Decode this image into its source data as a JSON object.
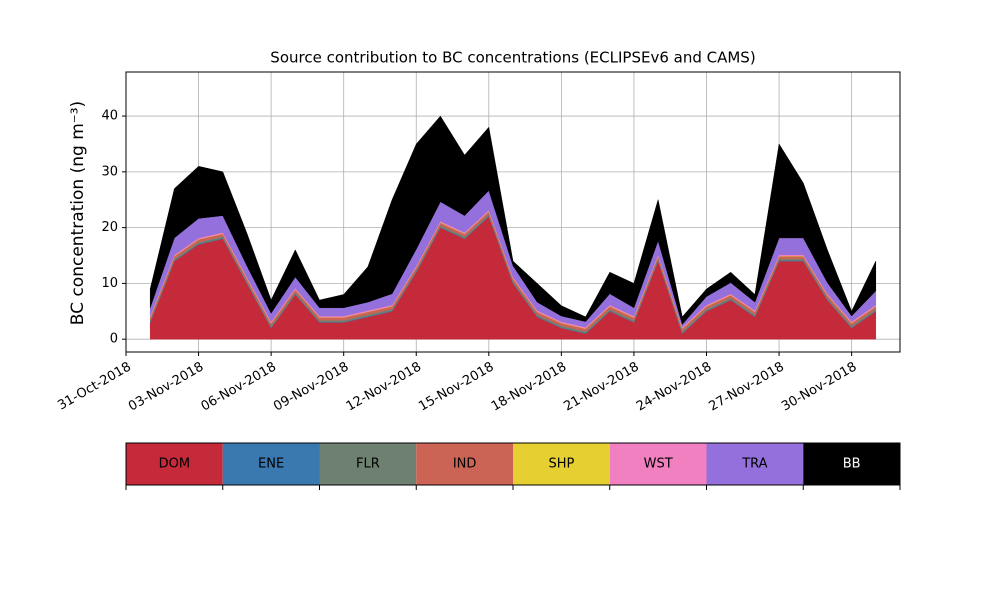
{
  "chart_data": {
    "type": "stacked_area",
    "title": "Source contribution to BC concentrations (ECLIPSEv6 and CAMS)",
    "y_label": "BC concentration (ng m⁻³)",
    "x": [
      "2018-11-01",
      "2018-11-02",
      "2018-11-03",
      "2018-11-04",
      "2018-11-05",
      "2018-11-06",
      "2018-11-07",
      "2018-11-08",
      "2018-11-09",
      "2018-11-10",
      "2018-11-11",
      "2018-11-12",
      "2018-11-13",
      "2018-11-14",
      "2018-11-15",
      "2018-11-16",
      "2018-11-17",
      "2018-11-18",
      "2018-11-19",
      "2018-11-20",
      "2018-11-21",
      "2018-11-22",
      "2018-11-23",
      "2018-11-24",
      "2018-11-25",
      "2018-11-26",
      "2018-11-27",
      "2018-11-28",
      "2018-11-29",
      "2018-11-30",
      "2018-12-01"
    ],
    "series": [
      {
        "name": "DOM",
        "color": "#c52a3a",
        "values": [
          3,
          14,
          17,
          18,
          10,
          2,
          8,
          3,
          3,
          4,
          5,
          12,
          20,
          18,
          22,
          10,
          4,
          2,
          1,
          5,
          3,
          14,
          1,
          5,
          7,
          4,
          14,
          14,
          7,
          2,
          5
        ]
      },
      {
        "name": "ENE",
        "color": "#3a78b0",
        "values": [
          0.1,
          0.1,
          0.1,
          0.1,
          0.1,
          0.1,
          0.1,
          0.1,
          0.1,
          0.1,
          0.1,
          0.1,
          0.1,
          0.1,
          0.1,
          0.1,
          0.1,
          0.1,
          0.1,
          0.1,
          0.1,
          0.1,
          0.1,
          0.1,
          0.1,
          0.1,
          0.1,
          0.1,
          0.1,
          0.1,
          0.1
        ]
      },
      {
        "name": "FLR",
        "color": "#6e8070",
        "values": [
          0.3,
          0.3,
          0.3,
          0.3,
          0.3,
          0.3,
          0.3,
          0.3,
          0.3,
          0.3,
          0.3,
          0.3,
          0.3,
          0.3,
          0.3,
          0.3,
          0.3,
          0.3,
          0.3,
          0.3,
          0.3,
          0.3,
          0.3,
          0.3,
          0.3,
          0.3,
          0.3,
          0.3,
          0.3,
          0.3,
          0.3
        ]
      },
      {
        "name": "IND",
        "color": "#cb6455",
        "values": [
          0.5,
          0.5,
          0.5,
          0.5,
          0.5,
          0.5,
          0.5,
          0.5,
          0.5,
          0.5,
          0.5,
          0.5,
          0.5,
          0.5,
          0.5,
          0.5,
          0.5,
          0.5,
          0.5,
          0.5,
          0.5,
          0.5,
          0.5,
          0.5,
          0.5,
          0.5,
          0.5,
          0.5,
          0.5,
          0.5,
          0.5
        ]
      },
      {
        "name": "SHP",
        "color": "#e6cf30",
        "values": [
          0.05,
          0.05,
          0.05,
          0.05,
          0.05,
          0.05,
          0.05,
          0.05,
          0.05,
          0.05,
          0.05,
          0.05,
          0.05,
          0.05,
          0.05,
          0.05,
          0.05,
          0.05,
          0.05,
          0.05,
          0.05,
          0.05,
          0.05,
          0.05,
          0.05,
          0.05,
          0.05,
          0.05,
          0.05,
          0.05,
          0.05
        ]
      },
      {
        "name": "WST",
        "color": "#f080c0",
        "values": [
          0.2,
          0.2,
          0.2,
          0.2,
          0.2,
          0.2,
          0.2,
          0.2,
          0.2,
          0.2,
          0.2,
          0.2,
          0.2,
          0.2,
          0.2,
          0.2,
          0.2,
          0.2,
          0.2,
          0.2,
          0.2,
          0.2,
          0.2,
          0.2,
          0.2,
          0.2,
          0.2,
          0.2,
          0.2,
          0.2,
          0.2
        ]
      },
      {
        "name": "TRA",
        "color": "#9370db",
        "values": [
          1.5,
          3,
          3.5,
          3,
          2,
          1.5,
          2,
          1.5,
          1.5,
          1.5,
          2,
          3,
          3.5,
          3,
          3.5,
          2,
          1.5,
          1,
          1,
          2,
          1.5,
          2.5,
          0.5,
          1.5,
          2,
          1.5,
          3,
          3,
          2,
          1,
          2.5
        ]
      },
      {
        "name": "BB",
        "color": "#000000",
        "values": [
          3.35,
          8.85,
          9.35,
          7.85,
          5.85,
          2.35,
          4.85,
          1.35,
          2.35,
          6.35,
          16.85,
          18.85,
          15.35,
          10.85,
          11.35,
          0.85,
          3.35,
          1.85,
          0.85,
          3.85,
          4.35,
          7.35,
          1.35,
          1.35,
          1.85,
          1.35,
          16.85,
          9.85,
          5.85,
          0.85,
          5.35
        ]
      }
    ],
    "xlim": [
      "2018-10-31",
      "2018-12-02"
    ],
    "xticks": [
      {
        "value": "2018-10-31",
        "label": "31-Oct-2018"
      },
      {
        "value": "2018-11-03",
        "label": "03-Nov-2018"
      },
      {
        "value": "2018-11-06",
        "label": "06-Nov-2018"
      },
      {
        "value": "2018-11-09",
        "label": "09-Nov-2018"
      },
      {
        "value": "2018-11-12",
        "label": "12-Nov-2018"
      },
      {
        "value": "2018-11-15",
        "label": "15-Nov-2018"
      },
      {
        "value": "2018-11-18",
        "label": "18-Nov-2018"
      },
      {
        "value": "2018-11-21",
        "label": "21-Nov-2018"
      },
      {
        "value": "2018-11-24",
        "label": "24-Nov-2018"
      },
      {
        "value": "2018-11-27",
        "label": "27-Nov-2018"
      },
      {
        "value": "2018-11-30",
        "label": "30-Nov-2018"
      }
    ],
    "ylim": [
      -2.3,
      47.9
    ],
    "yticks": [
      0,
      10,
      20,
      30,
      40
    ],
    "grid": true
  }
}
